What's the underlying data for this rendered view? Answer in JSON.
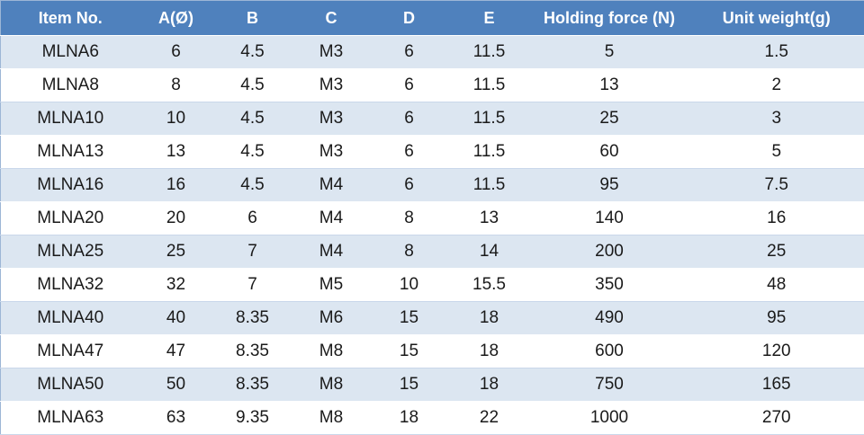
{
  "table": {
    "header": [
      "Item No.",
      "A(Ø)",
      "B",
      "C",
      "D",
      "E",
      "Holding force (N)",
      "Unit weight(g)"
    ],
    "rows": [
      [
        "MLNA6",
        "6",
        "4.5",
        "M3",
        "6",
        "11.5",
        "5",
        "1.5"
      ],
      [
        "MLNA8",
        "8",
        "4.5",
        "M3",
        "6",
        "11.5",
        "13",
        "2"
      ],
      [
        "MLNA10",
        "10",
        "4.5",
        "M3",
        "6",
        "11.5",
        "25",
        "3"
      ],
      [
        "MLNA13",
        "13",
        "4.5",
        "M3",
        "6",
        "11.5",
        "60",
        "5"
      ],
      [
        "MLNA16",
        "16",
        "4.5",
        "M4",
        "6",
        "11.5",
        "95",
        "7.5"
      ],
      [
        "MLNA20",
        "20",
        "6",
        "M4",
        "8",
        "13",
        "140",
        "16"
      ],
      [
        "MLNA25",
        "25",
        "7",
        "M4",
        "8",
        "14",
        "200",
        "25"
      ],
      [
        "MLNA32",
        "32",
        "7",
        "M5",
        "10",
        "15.5",
        "350",
        "48"
      ],
      [
        "MLNA40",
        "40",
        "8.35",
        "M6",
        "15",
        "18",
        "490",
        "95"
      ],
      [
        "MLNA47",
        "47",
        "8.35",
        "M8",
        "15",
        "18",
        "600",
        "120"
      ],
      [
        "MLNA50",
        "50",
        "8.35",
        "M8",
        "15",
        "18",
        "750",
        "165"
      ],
      [
        "MLNA63",
        "63",
        "9.35",
        "M8",
        "18",
        "22",
        "1000",
        "270"
      ]
    ]
  }
}
